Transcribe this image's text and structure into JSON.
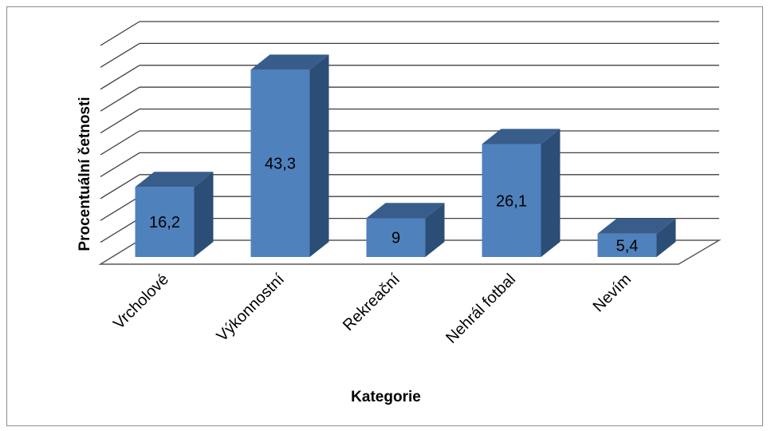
{
  "chart_data": {
    "type": "bar",
    "title": "",
    "xlabel": "Kategorie",
    "ylabel": "Procentuální četnosti",
    "categories": [
      "Vrcholové",
      "Výkonnostní",
      "Rekreační",
      "Nehrál fotbal",
      "Nevím"
    ],
    "values": [
      16.2,
      43.3,
      9,
      26.1,
      5.4
    ],
    "value_labels": [
      "16,2",
      "43,3",
      "9",
      "26,1",
      "5,4"
    ],
    "ylim": [
      0,
      50
    ],
    "grid": true,
    "legend": "none",
    "style": "3d-column",
    "colors": {
      "bar_front": "#4f81bd",
      "bar_side": "#2c4d75",
      "bar_top": "#385d8a",
      "gridline": "#404040",
      "floor": "#595959"
    }
  }
}
